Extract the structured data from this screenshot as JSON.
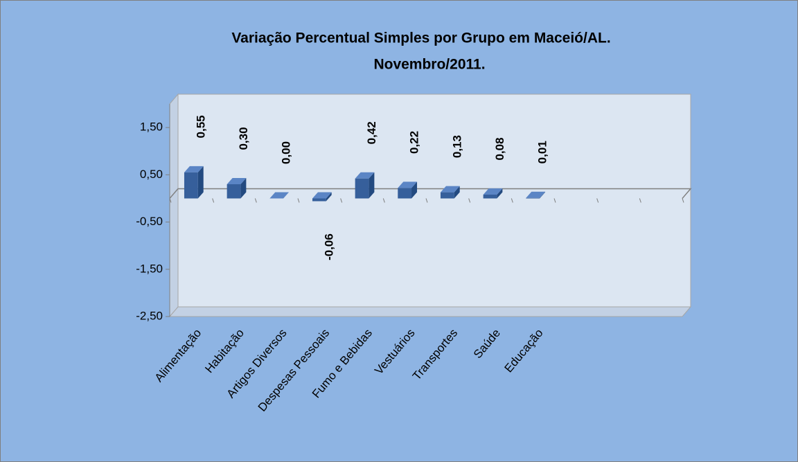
{
  "chart_data": {
    "type": "bar3d",
    "title": "Variação Percentual Simples por Grupo em Maceió/AL.",
    "subtitle": "Novembro/2011.",
    "categories": [
      "Alimentação",
      "Habitação",
      "Artigos Diversos",
      "Despesas Pessoais",
      "Fumo e Bebidas",
      "Vestuários",
      "Transportes",
      "Saúde",
      "Educação",
      null,
      null,
      null
    ],
    "values": [
      0.55,
      0.3,
      0.0,
      -0.06,
      0.42,
      0.22,
      0.13,
      0.08,
      0.01,
      null,
      null,
      null
    ],
    "value_labels": [
      "0,55",
      "0,30",
      "0,00",
      "-0,06",
      "0,42",
      "0,22",
      "0,13",
      "0,08",
      "0,01",
      null,
      null,
      null
    ],
    "color": "#365f9b",
    "ylim": [
      -2.5,
      2.0
    ],
    "yticks": [
      {
        "value": -2.5,
        "label": "-2,50"
      },
      {
        "value": -1.5,
        "label": "-1,50"
      },
      {
        "value": -0.5,
        "label": "-0,50"
      },
      {
        "value": 0.5,
        "label": "0,50"
      },
      {
        "value": 1.5,
        "label": "1,50"
      }
    ]
  }
}
